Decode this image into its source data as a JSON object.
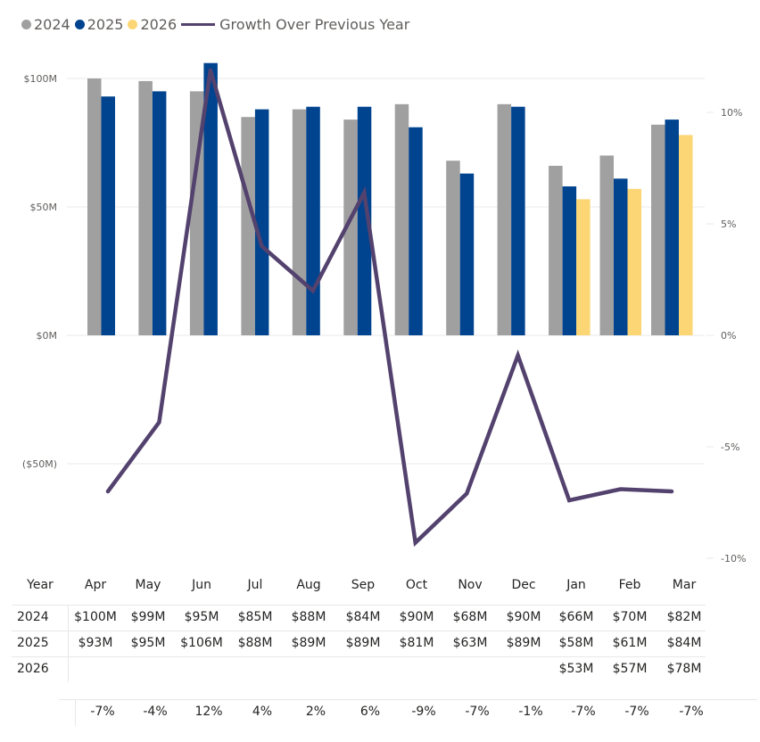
{
  "legend": {
    "items": [
      {
        "label": "2024",
        "color": "#a0a0a0",
        "kind": "dot"
      },
      {
        "label": "2025",
        "color": "#00438f",
        "kind": "dot"
      },
      {
        "label": "2026",
        "color": "#fcd675",
        "kind": "dot"
      },
      {
        "label": "Growth Over Previous Year",
        "color": "#53426e",
        "kind": "line"
      }
    ]
  },
  "chart_data": {
    "type": "bar",
    "combo": "clustered column + line (secondary axis)",
    "title": "",
    "xlabel": "",
    "ylabel": "",
    "categories": [
      "Apr",
      "May",
      "Jun",
      "Jul",
      "Aug",
      "Sep",
      "Oct",
      "Nov",
      "Dec",
      "Jan",
      "Feb",
      "Mar"
    ],
    "series": [
      {
        "name": "2024",
        "type": "bar",
        "axis": "left",
        "color": "#a0a0a0",
        "values": [
          100,
          99,
          95,
          85,
          88,
          84,
          90,
          68,
          90,
          66,
          70,
          82
        ]
      },
      {
        "name": "2025",
        "type": "bar",
        "axis": "left",
        "color": "#00438f",
        "values": [
          93,
          95,
          106,
          88,
          89,
          89,
          81,
          63,
          89,
          58,
          61,
          84
        ]
      },
      {
        "name": "2026",
        "type": "bar",
        "axis": "left",
        "color": "#fcd675",
        "values": [
          null,
          null,
          null,
          null,
          null,
          null,
          null,
          null,
          null,
          53,
          57,
          78
        ]
      },
      {
        "name": "Growth Over Previous Year",
        "type": "line",
        "axis": "right",
        "color": "#53426e",
        "values": [
          -7.0,
          -3.9,
          11.9,
          4.0,
          2.0,
          6.4,
          -9.3,
          -7.1,
          -0.9,
          -7.4,
          -6.9,
          -7.0
        ]
      }
    ],
    "left_axis": {
      "unit": "$M",
      "ylim": [
        -89,
        100
      ],
      "ticks": [
        100,
        50,
        0,
        -50
      ],
      "tick_labels": [
        "$100M",
        "$50M",
        "$0M",
        "($50M)"
      ]
    },
    "right_axis": {
      "unit": "%",
      "ylim": [
        -10,
        15
      ],
      "ticks": [
        10,
        5,
        0,
        -5,
        -10
      ],
      "tick_labels": [
        "10%",
        "5%",
        "0%",
        "-5%",
        "-10%"
      ]
    },
    "grid": true,
    "legend_position": "top-left"
  },
  "table": {
    "header_label": "Year",
    "months": [
      "Apr",
      "May",
      "Jun",
      "Jul",
      "Aug",
      "Sep",
      "Oct",
      "Nov",
      "Dec",
      "Jan",
      "Feb",
      "Mar"
    ],
    "rows": [
      {
        "year": "2024",
        "values": [
          "$100M",
          "$99M",
          "$95M",
          "$85M",
          "$88M",
          "$84M",
          "$90M",
          "$68M",
          "$90M",
          "$66M",
          "$70M",
          "$82M"
        ]
      },
      {
        "year": "2025",
        "values": [
          "$93M",
          "$95M",
          "$106M",
          "$88M",
          "$89M",
          "$89M",
          "$81M",
          "$63M",
          "$89M",
          "$58M",
          "$61M",
          "$84M"
        ]
      },
      {
        "year": "2026",
        "values": [
          "",
          "",
          "",
          "",
          "",
          "",
          "",
          "",
          "",
          "$53M",
          "$57M",
          "$78M"
        ]
      }
    ],
    "growth": [
      "-7%",
      "-4%",
      "12%",
      "4%",
      "2%",
      "6%",
      "-9%",
      "-7%",
      "-1%",
      "-7%",
      "-7%",
      "-7%"
    ]
  }
}
